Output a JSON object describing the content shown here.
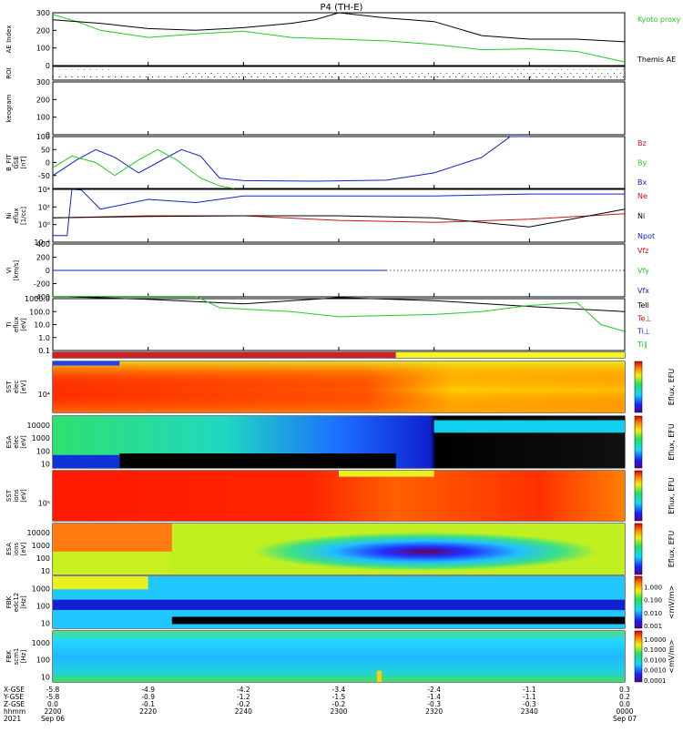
{
  "chart_data": {
    "type": "line",
    "title": "P4 (TH-E)",
    "date": "2021",
    "date_start": "Sep 06",
    "date_end": "Sep 07",
    "colors": {
      "green": "#22cc22",
      "black": "#000000",
      "red": "#cc1111",
      "blue": "#1122cc",
      "roi_red": "#d42020",
      "roi_yellow": "#f5f51a"
    },
    "time_axis": {
      "xlim": [
        "2200",
        "0000"
      ],
      "ticks": [
        "2200",
        "2220",
        "2240",
        "2300",
        "2320",
        "2340",
        "0000"
      ]
    },
    "coords": {
      "labels": [
        "X-GSE",
        "Y-GSE",
        "Z-GSE",
        "hhmm"
      ],
      "units": "RE",
      "rows": [
        [
          "-5.8",
          "-5.8",
          "0.0",
          "2200"
        ],
        [
          "-4.9",
          "-0.9",
          "-0.1",
          "2220"
        ],
        [
          "-4.2",
          "-1.2",
          "-0.2",
          "2240"
        ],
        [
          "-3.4",
          "-1.5",
          "-0.2",
          "2300"
        ],
        [
          "-2.4",
          "-1.4",
          "-0.3",
          "2320"
        ],
        [
          "-1.1",
          "-1.1",
          "-0.3",
          "2340"
        ],
        [
          "0.3",
          "0.2",
          "0.0",
          "0000"
        ]
      ]
    },
    "panels": [
      {
        "id": "ae",
        "label": "AE Index",
        "ylim": [
          0,
          300
        ],
        "ticks": [
          "0",
          "100",
          "200",
          "300"
        ],
        "legend": [
          {
            "text": "Kyoto proxy AE",
            "color": "#22cc22"
          },
          {
            "text": "Themis AE",
            "color": "#000000"
          }
        ],
        "series": [
          {
            "name": "Kyoto proxy AE",
            "color": "#22cc22",
            "x": [
              0,
              5,
              10,
              20,
              30,
              40,
              50,
              60,
              70,
              80,
              90,
              100,
              110,
              120
            ],
            "y": [
              290,
              250,
              200,
              160,
              180,
              195,
              160,
              150,
              140,
              120,
              90,
              95,
              80,
              20
            ]
          },
          {
            "name": "Themis AE",
            "color": "#000000",
            "x": [
              0,
              10,
              20,
              30,
              40,
              50,
              55,
              60,
              70,
              80,
              90,
              100,
              110,
              120
            ],
            "y": [
              260,
              240,
              210,
              200,
              215,
              240,
              260,
              300,
              270,
              250,
              170,
              150,
              150,
              135
            ]
          }
        ]
      },
      {
        "id": "roi",
        "label": "ROI"
      },
      {
        "id": "keogram",
        "label": "keogram",
        "ylim": [
          0,
          300
        ],
        "ticks": [
          "0",
          "100",
          "200",
          "300"
        ]
      },
      {
        "id": "bfit",
        "label": "B_FIT GSE [nT]",
        "ylim": [
          -100,
          100
        ],
        "ticks": [
          "-50",
          "0",
          "50",
          "100"
        ],
        "legend": [
          {
            "text": "Bz",
            "color": "#cc1111"
          },
          {
            "text": "By",
            "color": "#22cc22"
          },
          {
            "text": "Bx",
            "color": "#1122cc"
          }
        ],
        "series": [
          {
            "name": "Bx",
            "color": "#1122cc",
            "x": [
              0,
              5,
              9,
              13,
              18,
              22,
              27,
              31,
              35,
              40,
              55,
              70,
              80,
              90,
              96,
              100
            ],
            "y": [
              -50,
              10,
              50,
              20,
              -40,
              0,
              50,
              25,
              -60,
              -70,
              -72,
              -68,
              -40,
              20,
              100,
              100
            ]
          },
          {
            "name": "By",
            "color": "#22cc22",
            "x": [
              0,
              4,
              9,
              13,
              18,
              22,
              26,
              31,
              35,
              38
            ],
            "y": [
              -20,
              25,
              0,
              -50,
              10,
              50,
              10,
              -60,
              -90,
              -100
            ]
          }
        ]
      },
      {
        "id": "ni",
        "label": "Ni eflux [1/cc]",
        "ylim": [
          0.0001,
          10000
        ],
        "log": true,
        "ticks": [
          "10⁻⁴",
          "10⁰",
          "10²",
          "10⁴"
        ],
        "legend": [
          {
            "text": "Ne",
            "color": "#cc1111"
          },
          {
            "text": "Ni",
            "color": "#000000"
          },
          {
            "text": "Npot",
            "color": "#1122cc"
          }
        ],
        "series": [
          {
            "name": "Ne",
            "color": "#cc1111",
            "x": [
              0,
              20,
              40,
              60,
              80,
              100,
              120
            ],
            "y": [
              0.5,
              1,
              1,
              0.2,
              0.1,
              0.3,
              2
            ]
          },
          {
            "name": "Ni",
            "color": "#000000",
            "x": [
              0,
              20,
              40,
              60,
              80,
              100,
              120
            ],
            "y": [
              0.5,
              0.8,
              1,
              1,
              0.5,
              0.02,
              10
            ]
          },
          {
            "name": "Npot",
            "color": "#1122cc",
            "x": [
              0,
              3,
              4,
              6,
              10,
              20,
              30,
              40,
              60,
              80,
              100,
              105,
              120
            ],
            "y": [
              0.001,
              0.001,
              10000,
              8000,
              10,
              300,
              100,
              1000,
              1000,
              1000,
              2000,
              2000,
              2000
            ]
          }
        ]
      },
      {
        "id": "vi",
        "label": "Vi [km/s]",
        "ylim": [
          -400,
          400
        ],
        "ticks": [
          "-400",
          "-200",
          "0",
          "200",
          "400"
        ],
        "legend": [
          {
            "text": "Vfz",
            "color": "#cc1111"
          },
          {
            "text": "Vfy",
            "color": "#22cc22"
          },
          {
            "text": "Vfx",
            "color": "#1122cc"
          }
        ],
        "series": [
          {
            "name": "Vfx",
            "color": "#1122cc",
            "x": [
              0,
              70
            ],
            "y": [
              0,
              0
            ]
          }
        ]
      },
      {
        "id": "ti",
        "label": "Ti eflux [eV]",
        "ylim": [
          0.1,
          1000
        ],
        "log": true,
        "ticks": [
          "0.1",
          "1.0",
          "10.0",
          "100.0",
          "1000.0"
        ],
        "legend": [
          {
            "text": "Tell",
            "color": "#000000"
          },
          {
            "text": "Te⊥",
            "color": "#cc1111"
          },
          {
            "text": "Ti⊥",
            "color": "#1122cc"
          },
          {
            "text": "Ti∥",
            "color": "#22cc22"
          }
        ],
        "series": [
          {
            "name": "Tell",
            "color": "#000000",
            "x": [
              0,
              20,
              40,
              60,
              80,
              100,
              120
            ],
            "y": [
              1500,
              900,
              400,
              1200,
              700,
              250,
              100
            ]
          },
          {
            "name": "Ti∥",
            "color": "#22cc22",
            "x": [
              0,
              30,
              35,
              50,
              60,
              80,
              90,
              100,
              110,
              115,
              120
            ],
            "y": [
              1500,
              1500,
              200,
              100,
              40,
              60,
              100,
              300,
              500,
              10,
              3
            ]
          }
        ]
      },
      {
        "id": "roi_bar",
        "label": ""
      },
      {
        "id": "sst_e",
        "label": "SST elec [eV]",
        "ticks": [
          "10⁴"
        ],
        "colorbar": "Eflux, EFU"
      },
      {
        "id": "esa_e",
        "label": "ESA elec [eV]",
        "ticks": [
          "10",
          "100",
          "1000",
          "10000"
        ],
        "colorbar": "Eflux, EFU"
      },
      {
        "id": "sst_i",
        "label": "SST ions [eV]",
        "ticks": [
          "10⁵"
        ],
        "colorbar": "Eflux, EFU"
      },
      {
        "id": "esa_i",
        "label": "ESA ions [eV]",
        "ticks": [
          "10",
          "100",
          "1000",
          "10000"
        ],
        "colorbar": "Eflux, EFU"
      },
      {
        "id": "fbk_e12",
        "label": "FBK edc12 [Hz]",
        "ticks": [
          "10",
          "100",
          "1000"
        ],
        "colorbar": "<mV/m>",
        "cticks": [
          "0.001",
          "0.010",
          "0.100",
          "1.000"
        ]
      },
      {
        "id": "fbk_scm",
        "label": "FBK scm1 [Hz]",
        "ticks": [
          "10",
          "100",
          "1000"
        ],
        "colorbar": "<mV/m>",
        "cticks": [
          "0.0001",
          "0.0010",
          "0.0100",
          "0.1000",
          "1.0000"
        ]
      }
    ]
  }
}
